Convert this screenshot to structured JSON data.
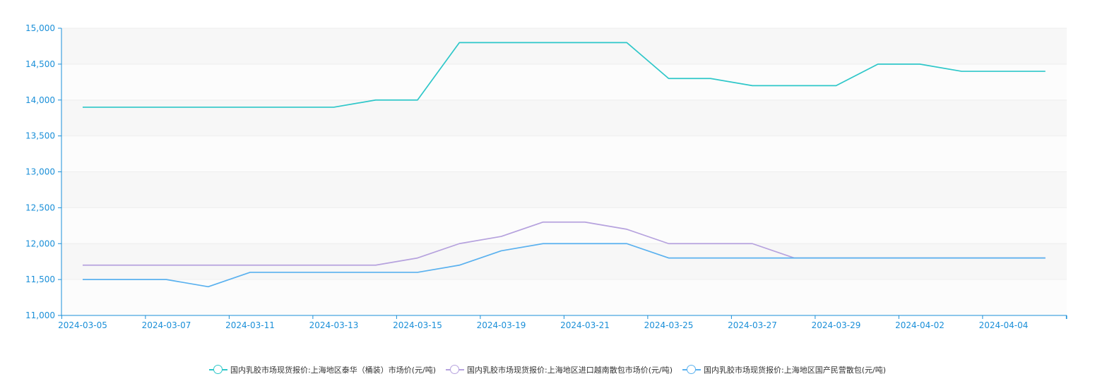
{
  "chart_data": {
    "type": "line",
    "x": [
      "2024-03-05",
      "2024-03-06",
      "2024-03-07",
      "2024-03-08",
      "2024-03-11",
      "2024-03-12",
      "2024-03-13",
      "2024-03-14",
      "2024-03-15",
      "2024-03-18",
      "2024-03-19",
      "2024-03-20",
      "2024-03-21",
      "2024-03-22",
      "2024-03-25",
      "2024-03-26",
      "2024-03-27",
      "2024-03-28",
      "2024-03-29",
      "2024-04-01",
      "2024-04-02",
      "2024-04-03",
      "2024-04-04",
      "2024-04-05"
    ],
    "x_tick_labels": [
      "2024-03-05",
      "2024-03-07",
      "2024-03-11",
      "2024-03-13",
      "2024-03-15",
      "2024-03-19",
      "2024-03-21",
      "2024-03-25",
      "2024-03-27",
      "2024-03-29",
      "2024-04-02",
      "2024-04-04"
    ],
    "y_tick_labels": [
      "11,000",
      "11,500",
      "12,000",
      "12,500",
      "13,000",
      "13,500",
      "14,000",
      "14,500",
      "15,000"
    ],
    "ylim": [
      11000,
      15000
    ],
    "grid": "horizontal bands",
    "legend_position": "bottom-center",
    "series": [
      {
        "name": "国内乳胶市场现货报价:上海地区泰华（桶装）市场价(元/吨)",
        "color": "#2ec7c9",
        "values": [
          13900,
          13900,
          13900,
          13900,
          13900,
          13900,
          13900,
          14000,
          14000,
          14800,
          14800,
          14800,
          14800,
          14800,
          14300,
          14300,
          14200,
          14200,
          14200,
          14500,
          14500,
          14400,
          14400,
          14400
        ]
      },
      {
        "name": "国内乳胶市场现货报价:上海地区进口越南散包市场价(元/吨)",
        "color": "#b6a2de",
        "values": [
          11700,
          11700,
          11700,
          11700,
          11700,
          11700,
          11700,
          11700,
          11800,
          12000,
          12100,
          12300,
          12300,
          12200,
          12000,
          12000,
          12000,
          11800,
          11800,
          11800,
          11800,
          11800,
          11800,
          11800
        ]
      },
      {
        "name": "国内乳胶市场现货报价:上海地区国产民营散包(元/吨)",
        "color": "#5ab1ef",
        "values": [
          11500,
          11500,
          11500,
          11400,
          11600,
          11600,
          11600,
          11600,
          11600,
          11700,
          11900,
          12000,
          12000,
          12000,
          11800,
          11800,
          11800,
          11800,
          11800,
          11800,
          11800,
          11800,
          11800,
          11800
        ]
      }
    ]
  }
}
